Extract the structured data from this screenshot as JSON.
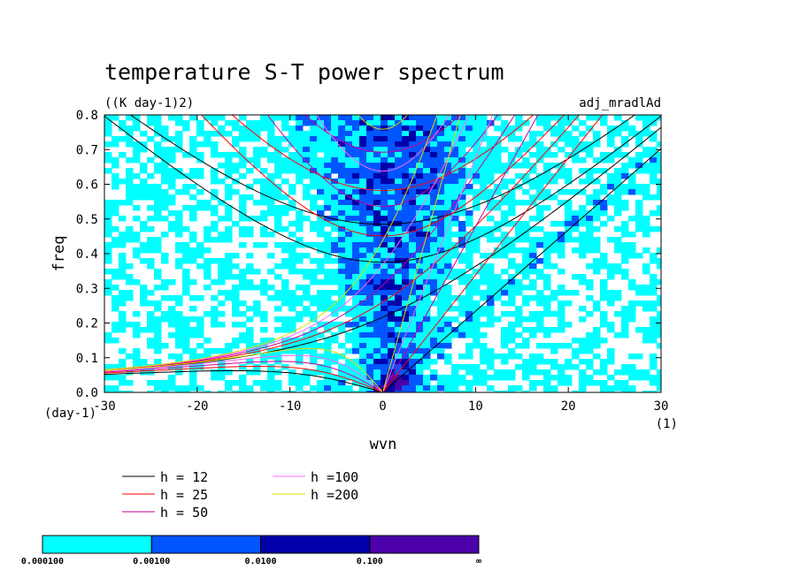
{
  "chart_data": {
    "type": "heatmap",
    "title": "temperature S-T power spectrum",
    "units": "((K day-1)2)",
    "annotation": "adj_mradlAd",
    "xlabel": "wvn",
    "ylabel": "freq",
    "x_unit": "(1)",
    "y_unit": "(day-1)",
    "xlim": [
      -30,
      30
    ],
    "ylim": [
      0,
      0.8
    ],
    "x_ticks": [
      "-30",
      "-20",
      "-10",
      "0",
      "10",
      "20",
      "30"
    ],
    "y_ticks": [
      "0.0",
      "0.1",
      "0.2",
      "0.3",
      "0.4",
      "0.5",
      "0.6",
      "0.7",
      "0.8"
    ],
    "x_tick_values": [
      -30,
      -20,
      -10,
      0,
      10,
      20,
      30
    ],
    "y_tick_values": [
      0,
      0.1,
      0.2,
      0.3,
      0.4,
      0.5,
      0.6,
      0.7,
      0.8
    ],
    "colorbar": {
      "levels": [
        "0.000100",
        "0.00100",
        "0.0100",
        "0.100",
        "∞"
      ],
      "colors": [
        "#00ffff",
        "#0055ff",
        "#0000aa",
        "#4b00aa"
      ]
    },
    "series": [
      {
        "name": "h = 12",
        "value": 12,
        "color": "#000000"
      },
      {
        "name": "h = 25",
        "value": 25,
        "color": "#ff0000"
      },
      {
        "name": "h = 50",
        "value": 50,
        "color": "#cc0099"
      },
      {
        "name": "h =100",
        "value": 100,
        "color": "#ff66ff"
      },
      {
        "name": "h =200",
        "value": 200,
        "color": "#dddd00"
      }
    ]
  }
}
